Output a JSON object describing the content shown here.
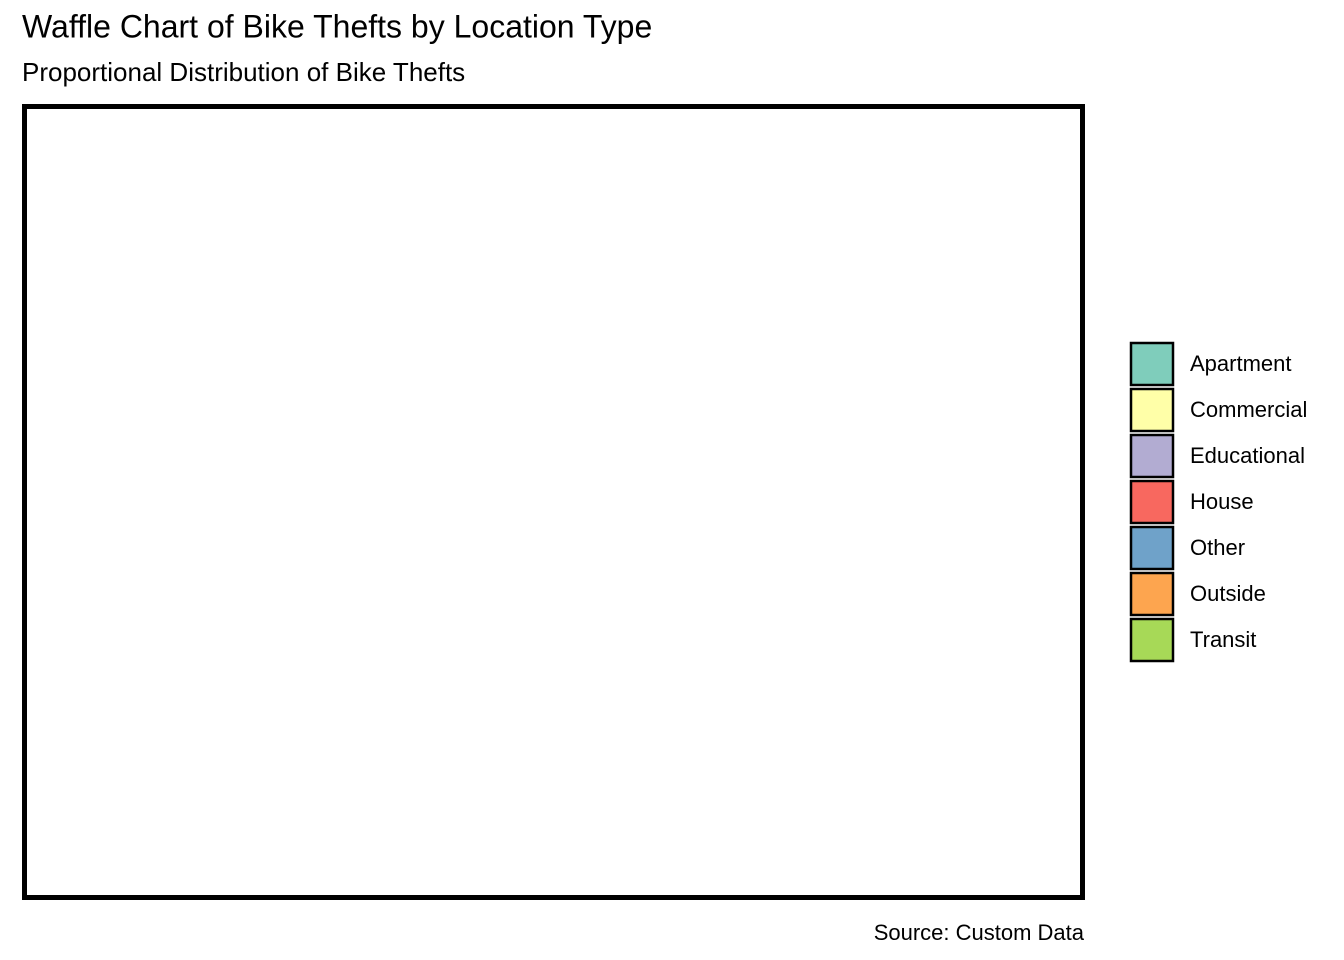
{
  "chart_data": {
    "type": "waffle",
    "title": "Waffle Chart of Bike Thefts by Location Type",
    "subtitle": "Proportional Distribution of Bike Thefts",
    "caption": "Source: Custom Data",
    "series": [
      {
        "name": "Apartment",
        "color": "#7fcdbb"
      },
      {
        "name": "Commercial",
        "color": "#ffffa8"
      },
      {
        "name": "Educational",
        "color": "#b2acd2"
      },
      {
        "name": "House",
        "color": "#f8685f"
      },
      {
        "name": "Other",
        "color": "#6fa2c9"
      },
      {
        "name": "Outside",
        "color": "#fda54f"
      },
      {
        "name": "Transit",
        "color": "#a7d957"
      }
    ]
  }
}
